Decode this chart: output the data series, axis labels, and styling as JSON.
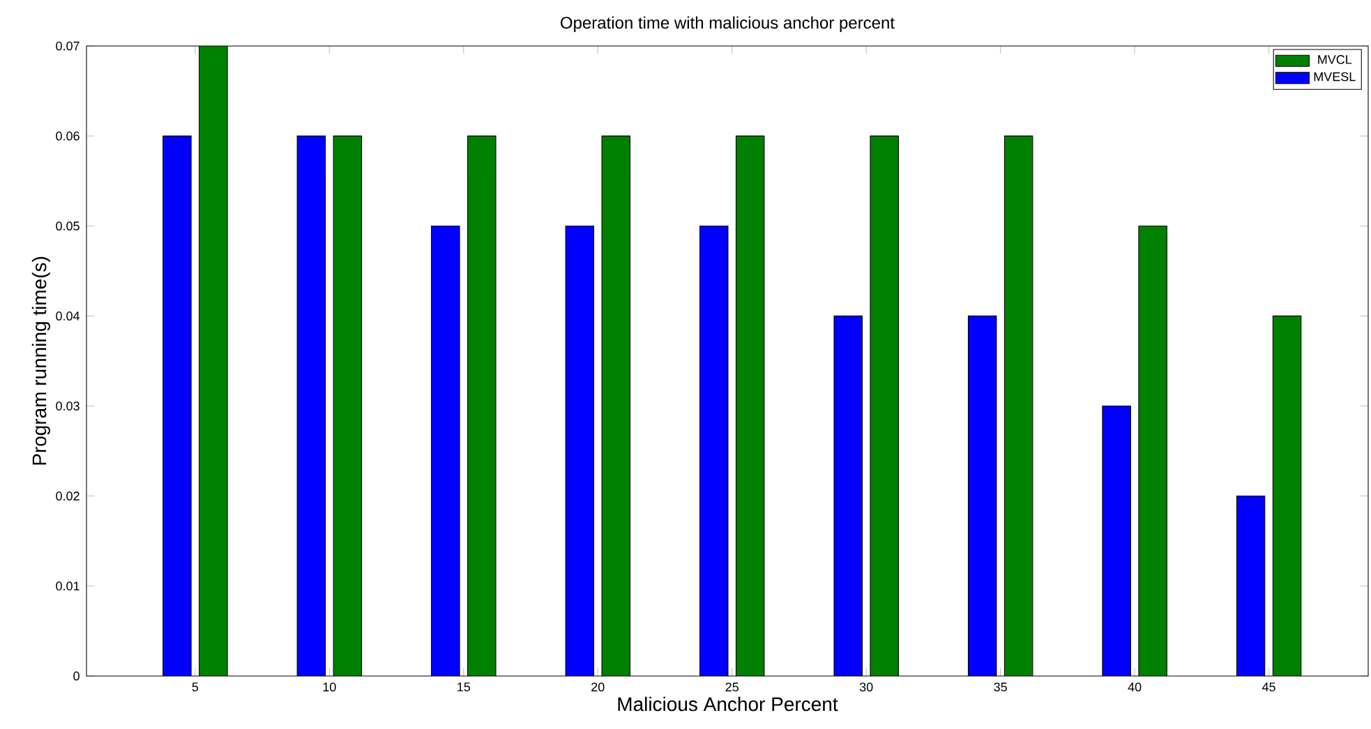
{
  "chart_data": {
    "type": "bar",
    "title": "Operation time with malicious anchor percent",
    "xlabel": "Malicious Anchor Percent",
    "ylabel": "Program running time(s)",
    "categories": [
      "5",
      "10",
      "15",
      "20",
      "25",
      "30",
      "35",
      "40",
      "45"
    ],
    "series": [
      {
        "name": "MVESL",
        "color": "#0000ff",
        "values": [
          0.06,
          0.06,
          0.05,
          0.05,
          0.05,
          0.04,
          0.04,
          0.03,
          0.02
        ]
      },
      {
        "name": "MVCL",
        "color": "#008000",
        "values": [
          0.07,
          0.06,
          0.06,
          0.06,
          0.06,
          0.06,
          0.06,
          0.05,
          0.04
        ]
      }
    ],
    "ylim": [
      0,
      0.07
    ],
    "yticks": [
      0,
      0.01,
      0.02,
      0.03,
      0.04,
      0.05,
      0.06,
      0.07
    ],
    "grid": false,
    "legend": "top right"
  }
}
